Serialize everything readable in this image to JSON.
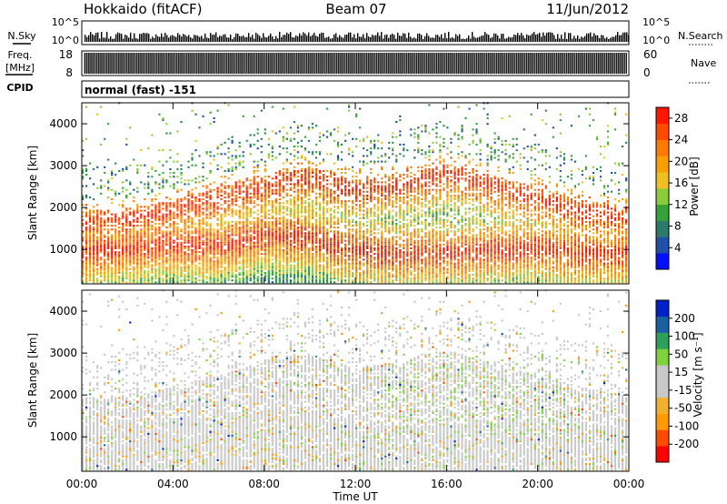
{
  "header": {
    "station": "Hokkaido (fitACF)",
    "beam": "Beam 07",
    "date": "11/Jun/2012"
  },
  "noise_panel": {
    "left_label": "N.Sky",
    "left_ticks": [
      "10^5",
      "10^0"
    ],
    "right_ticks": [
      "10^5",
      "10^0"
    ],
    "right_label": "N.Search"
  },
  "freq_panel": {
    "label_top": "Freq.",
    "label_unit": "[MHz]",
    "left_ticks": [
      "18",
      "8"
    ],
    "right_ticks": [
      "60",
      "0"
    ],
    "right_label": "Nave"
  },
  "cpid_panel": {
    "label": "CPID",
    "value": "normal (fast) -151"
  },
  "colors": {
    "power_scale": [
      "#0010ff",
      "#2050a8",
      "#2e7a6a",
      "#35a23a",
      "#8ccc3a",
      "#f0c020",
      "#f7a000",
      "#ff7a00",
      "#ff4a00",
      "#ff1600"
    ],
    "velocity_scale": [
      "#ff0000",
      "#ff4a00",
      "#ff9a00",
      "#f0b030",
      "#c8c8c8",
      "#c8c8c8",
      "#7fd23c",
      "#2ea05a",
      "#1a60a0",
      "#0020c8"
    ]
  },
  "chart_data": [
    {
      "type": "heatmap",
      "panel": "power",
      "ylabel": "Slant Range [km]",
      "ylim": [
        180,
        4500
      ],
      "yticks": [
        "1000",
        "2000",
        "3000",
        "4000"
      ],
      "xlim_hours": [
        0,
        24
      ],
      "colorbar": {
        "label": "Power [dB]",
        "ticks": [
          "28",
          "24",
          "20",
          "16",
          "12",
          "8",
          "4"
        ],
        "range": [
          0,
          30
        ]
      },
      "structure": {
        "lower_band_km": [
          [
            0,
            900
          ],
          [
            2,
            1000
          ],
          [
            4,
            1100
          ],
          [
            6,
            1050
          ],
          [
            8,
            1300
          ],
          [
            10,
            1250
          ],
          [
            12,
            950
          ],
          [
            14,
            850
          ],
          [
            16,
            900
          ],
          [
            18,
            950
          ],
          [
            20,
            1000
          ],
          [
            22,
            900
          ],
          [
            24,
            850
          ]
        ],
        "upper_band_km": [
          [
            0,
            1650
          ],
          [
            2,
            1700
          ],
          [
            4,
            1900
          ],
          [
            6,
            2200
          ],
          [
            8,
            2500
          ],
          [
            10,
            2700
          ],
          [
            12,
            2400
          ],
          [
            14,
            2500
          ],
          [
            16,
            2800
          ],
          [
            18,
            2500
          ],
          [
            20,
            2200
          ],
          [
            22,
            1900
          ],
          [
            24,
            1700
          ]
        ]
      }
    },
    {
      "type": "heatmap",
      "panel": "velocity",
      "ylabel": "Slant Range [km]",
      "xlabel": "Time UT",
      "ylim": [
        180,
        4500
      ],
      "yticks": [
        "1000",
        "2000",
        "3000",
        "4000"
      ],
      "xticks": [
        "00:00",
        "04:00",
        "08:00",
        "12:00",
        "16:00",
        "20:00",
        "00:00"
      ],
      "xlim_hours": [
        0,
        24
      ],
      "colorbar": {
        "label": "Velocity [m s⁻¹]",
        "ticks": [
          "200",
          "100",
          "50",
          "15",
          "-15",
          "-50",
          "-100",
          "-200"
        ],
        "range": [
          -250,
          250
        ]
      }
    }
  ]
}
